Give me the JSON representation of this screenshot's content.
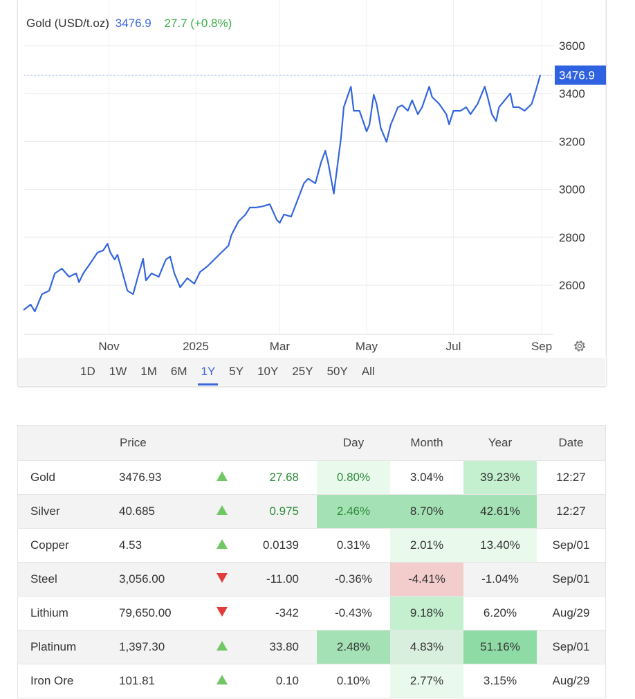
{
  "header": {
    "name": "Gold (USD/t.oz)",
    "price": "3476.9",
    "change": "27.7 (+0.8%)"
  },
  "ranges": [
    "1D",
    "1W",
    "1M",
    "6M",
    "1Y",
    "5Y",
    "10Y",
    "25Y",
    "50Y",
    "All"
  ],
  "active_range": "1Y",
  "colors": {
    "line": "#3366dd",
    "accent": "#3a67d8",
    "up": "#72c765",
    "down": "#e23b3b",
    "heat": {
      "g1": "#e9f9ec",
      "g2": "#c4f0cf",
      "g3": "#a4e2b5",
      "g4": "#8fdba5",
      "gm": "#d8efdd",
      "r1": "#f3cccc"
    }
  },
  "chart_data": {
    "type": "line",
    "title": "Gold (USD/t.oz)",
    "x_unit": "days since 2025-01-01",
    "xlim": [
      -121,
      250
    ],
    "ylim": [
      2450,
      3650
    ],
    "yticks": [
      2600,
      2800,
      3000,
      3200,
      3400,
      3600
    ],
    "xticks": [
      {
        "label": "Nov",
        "x": -61
      },
      {
        "label": "2025",
        "x": 0
      },
      {
        "label": "Mar",
        "x": 59
      },
      {
        "label": "May",
        "x": 120
      },
      {
        "label": "Jul",
        "x": 181
      },
      {
        "label": "Sep",
        "x": 243
      }
    ],
    "last_label": "3476.9",
    "grid": true,
    "series": [
      {
        "name": "Gold",
        "points": [
          [
            -121,
            2496
          ],
          [
            -116,
            2519
          ],
          [
            -113,
            2490
          ],
          [
            -108,
            2562
          ],
          [
            -103,
            2577
          ],
          [
            -99,
            2649
          ],
          [
            -94,
            2669
          ],
          [
            -89,
            2635
          ],
          [
            -84,
            2649
          ],
          [
            -82,
            2612
          ],
          [
            -79,
            2649
          ],
          [
            -74,
            2692
          ],
          [
            -69,
            2736
          ],
          [
            -65,
            2745
          ],
          [
            -62,
            2773
          ],
          [
            -60,
            2736
          ],
          [
            -57,
            2707
          ],
          [
            -55,
            2727
          ],
          [
            -52,
            2664
          ],
          [
            -48,
            2577
          ],
          [
            -44,
            2562
          ],
          [
            -40,
            2649
          ],
          [
            -37,
            2710
          ],
          [
            -35,
            2620
          ],
          [
            -31,
            2649
          ],
          [
            -26,
            2635
          ],
          [
            -21,
            2707
          ],
          [
            -18,
            2719
          ],
          [
            -15,
            2649
          ],
          [
            -11,
            2591
          ],
          [
            -6,
            2629
          ],
          [
            -1,
            2606
          ],
          [
            3,
            2655
          ],
          [
            8,
            2678
          ],
          [
            13,
            2707
          ],
          [
            18,
            2736
          ],
          [
            23,
            2765
          ],
          [
            25,
            2808
          ],
          [
            30,
            2866
          ],
          [
            35,
            2895
          ],
          [
            38,
            2924
          ],
          [
            42,
            2924
          ],
          [
            47,
            2929
          ],
          [
            52,
            2938
          ],
          [
            57,
            2872
          ],
          [
            59,
            2860
          ],
          [
            62,
            2895
          ],
          [
            67,
            2886
          ],
          [
            71,
            2947
          ],
          [
            76,
            3025
          ],
          [
            79,
            3045
          ],
          [
            84,
            3025
          ],
          [
            88,
            3112
          ],
          [
            91,
            3161
          ],
          [
            93,
            3112
          ],
          [
            97,
            2982
          ],
          [
            102,
            3213
          ],
          [
            104,
            3343
          ],
          [
            109,
            3429
          ],
          [
            111,
            3328
          ],
          [
            115,
            3328
          ],
          [
            120,
            3242
          ],
          [
            122,
            3271
          ],
          [
            125,
            3395
          ],
          [
            127,
            3357
          ],
          [
            130,
            3256
          ],
          [
            134,
            3198
          ],
          [
            137,
            3271
          ],
          [
            139,
            3299
          ],
          [
            142,
            3343
          ],
          [
            145,
            3351
          ],
          [
            149,
            3328
          ],
          [
            152,
            3372
          ],
          [
            156,
            3314
          ],
          [
            159,
            3343
          ],
          [
            164,
            3429
          ],
          [
            166,
            3386
          ],
          [
            171,
            3357
          ],
          [
            176,
            3314
          ],
          [
            178,
            3271
          ],
          [
            181,
            3328
          ],
          [
            186,
            3328
          ],
          [
            190,
            3343
          ],
          [
            193,
            3314
          ],
          [
            198,
            3357
          ],
          [
            203,
            3429
          ],
          [
            205,
            3386
          ],
          [
            208,
            3314
          ],
          [
            211,
            3285
          ],
          [
            213,
            3343
          ],
          [
            217,
            3372
          ],
          [
            221,
            3401
          ],
          [
            223,
            3343
          ],
          [
            227,
            3343
          ],
          [
            231,
            3328
          ],
          [
            236,
            3357
          ],
          [
            239,
            3415
          ],
          [
            242,
            3476.9
          ]
        ]
      }
    ]
  },
  "table": {
    "headers": [
      "",
      "Price",
      "",
      "",
      "Day",
      "Month",
      "Year",
      "Date"
    ],
    "rows": [
      {
        "name": "Gold",
        "price": "3476.93",
        "dir": "up",
        "change": "27.68",
        "day": "0.80%",
        "month": "3.04%",
        "year": "39.23%",
        "date": "12:27",
        "heat": [
          "g1",
          "",
          "g2"
        ],
        "pos": true
      },
      {
        "name": "Silver",
        "price": "40.685",
        "dir": "up",
        "change": "0.975",
        "day": "2.46%",
        "month": "8.70%",
        "year": "42.61%",
        "date": "12:27",
        "heat": [
          "g3",
          "g3",
          "g3"
        ],
        "pos": true
      },
      {
        "name": "Copper",
        "price": "4.53",
        "dir": "up",
        "change": "0.0139",
        "day": "0.31%",
        "month": "2.01%",
        "year": "13.40%",
        "date": "Sep/01",
        "heat": [
          "",
          "g1",
          "g1"
        ]
      },
      {
        "name": "Steel",
        "price": "3,056.00",
        "dir": "down",
        "change": "-11.00",
        "day": "-0.36%",
        "month": "-4.41%",
        "year": "-1.04%",
        "date": "Sep/01",
        "heat": [
          "",
          "r1",
          ""
        ]
      },
      {
        "name": "Lithium",
        "price": "79,650.00",
        "dir": "down",
        "change": "-342",
        "day": "-0.43%",
        "month": "9.18%",
        "year": "6.20%",
        "date": "Aug/29",
        "heat": [
          "",
          "g2",
          ""
        ]
      },
      {
        "name": "Platinum",
        "price": "1,397.30",
        "dir": "up",
        "change": "33.80",
        "day": "2.48%",
        "month": "4.83%",
        "year": "51.16%",
        "date": "Sep/01",
        "heat": [
          "g3",
          "gm",
          "g4"
        ]
      },
      {
        "name": "Iron Ore",
        "price": "101.81",
        "dir": "up",
        "change": "0.10",
        "day": "0.10%",
        "month": "2.77%",
        "year": "3.15%",
        "date": "Aug/29",
        "heat": [
          "",
          "g1",
          ""
        ]
      }
    ]
  }
}
